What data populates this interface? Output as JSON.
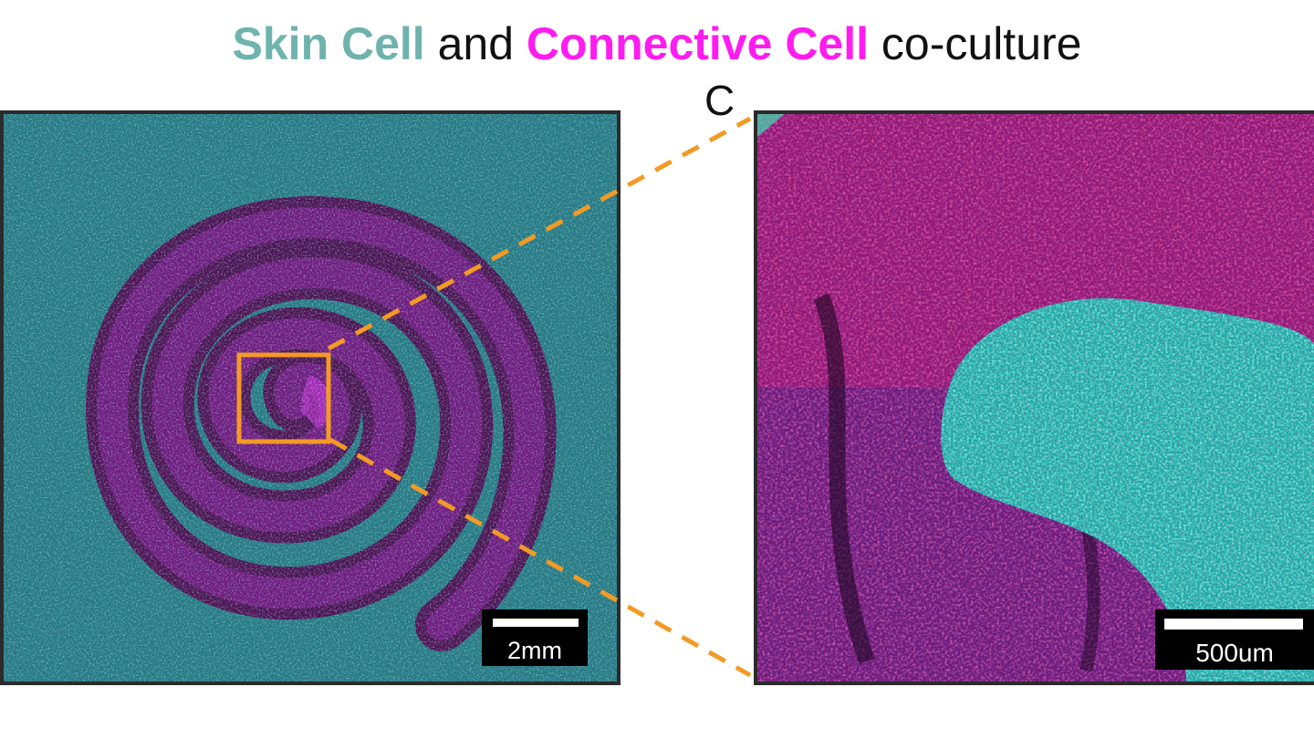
{
  "title": {
    "skin": "Skin Cell",
    "and": " and ",
    "connective": "Connective Cell",
    "rest": " co-culture"
  },
  "panel_letter": "C",
  "scale_left": "2mm",
  "scale_right": "500um",
  "colors": {
    "skin_title": "#6fb3ad",
    "connective_title": "#ff1cf0",
    "zoom_box": "#f39a25",
    "cyan_cells": "#35c8c8",
    "magenta_cells": "#7a1a8c",
    "red_cells": "#e0206a",
    "green_cells": "#3de0b0"
  }
}
